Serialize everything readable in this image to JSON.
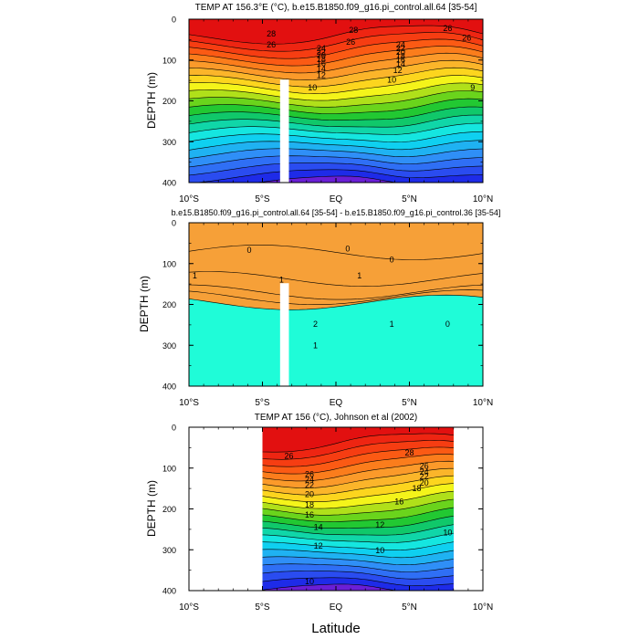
{
  "figure": {
    "xlabel": "Latitude"
  },
  "chart_data": [
    {
      "type": "heatmap",
      "title": "TEMP AT 156.3°E (°C), b.e15.B1850.f09_g16.pi_control.all.64 [35-54]",
      "xlabel": "",
      "ylabel": "DEPTH (m)",
      "xlim": [
        -10,
        10
      ],
      "ylim": [
        400,
        0
      ],
      "y_reversed": true,
      "x_tick_values": [
        -10,
        -5,
        0,
        5,
        10
      ],
      "x_tick_labels": [
        "10°S",
        "5°S",
        "EQ",
        "5°N",
        "10°N"
      ],
      "y_tick_values": [
        0,
        100,
        200,
        300,
        400
      ],
      "y_tick_labels": [
        "0",
        "100",
        "200",
        "300",
        "400"
      ],
      "color_levels": [
        8,
        9,
        10,
        11,
        12,
        13,
        14,
        15,
        16,
        17,
        18,
        19,
        20,
        21,
        22,
        23,
        24,
        25,
        26,
        27,
        28,
        29
      ],
      "color_scale": [
        "#6a1fd6",
        "#1e2be8",
        "#2a4cf0",
        "#2f6ff5",
        "#2f8ff7",
        "#1fb2f2",
        "#0fd0f0",
        "#15e6e0",
        "#10d6a8",
        "#10c86a",
        "#22c832",
        "#6ad41c",
        "#b0e01a",
        "#f4f41a",
        "#fcd51e",
        "#fbb52a",
        "#fb9a2a",
        "#fb7d1c",
        "#fb5a14",
        "#f63d12",
        "#ee2512",
        "#e21010"
      ],
      "contour_labels": [
        {
          "lat": -4.4,
          "depth": 36,
          "text": "28"
        },
        {
          "lat": 1.2,
          "depth": 27,
          "text": "28"
        },
        {
          "lat": 7.6,
          "depth": 22,
          "text": "26"
        },
        {
          "lat": 8.9,
          "depth": 46,
          "text": "26"
        },
        {
          "lat": -4.4,
          "depth": 63,
          "text": "26"
        },
        {
          "lat": 1.0,
          "depth": 56,
          "text": "26"
        },
        {
          "lat": -1.0,
          "depth": 71,
          "text": "24"
        },
        {
          "lat": 4.4,
          "depth": 63,
          "text": "24"
        },
        {
          "lat": -1.0,
          "depth": 80,
          "text": "22"
        },
        {
          "lat": 4.4,
          "depth": 72,
          "text": "22"
        },
        {
          "lat": -1.0,
          "depth": 88,
          "text": "20"
        },
        {
          "lat": 4.4,
          "depth": 81,
          "text": "20"
        },
        {
          "lat": 4.4,
          "depth": 90,
          "text": "18"
        },
        {
          "lat": -1.0,
          "depth": 98,
          "text": "18"
        },
        {
          "lat": 4.4,
          "depth": 99,
          "text": "16"
        },
        {
          "lat": -1.0,
          "depth": 108,
          "text": "16"
        },
        {
          "lat": 4.4,
          "depth": 110,
          "text": "14"
        },
        {
          "lat": -1.0,
          "depth": 122,
          "text": "14"
        },
        {
          "lat": 4.2,
          "depth": 125,
          "text": "12"
        },
        {
          "lat": -1.0,
          "depth": 137,
          "text": "12"
        },
        {
          "lat": 3.8,
          "depth": 149,
          "text": "10"
        },
        {
          "lat": -1.6,
          "depth": 168,
          "text": "10"
        },
        {
          "lat": 9.3,
          "depth": 168,
          "text": "9"
        }
      ],
      "masked_column": {
        "lat_from": -3.8,
        "lat_to": -3.2,
        "depth_from": 148,
        "depth_to": 400
      }
    },
    {
      "type": "heatmap",
      "title": "b.e15.B1850.f09_g16.pi_control.all.64 [35-54] - b.e15.B1850.f09_g16.pi_control.36 [35-54]",
      "xlabel": "",
      "ylabel": "DEPTH (m)",
      "xlim": [
        -10,
        10
      ],
      "ylim": [
        400,
        0
      ],
      "y_reversed": true,
      "x_tick_values": [
        -10,
        -5,
        0,
        5,
        10
      ],
      "x_tick_labels": [
        "10°S",
        "5°S",
        "EQ",
        "5°N",
        "10°N"
      ],
      "y_tick_values": [
        0,
        100,
        200,
        300,
        400
      ],
      "y_tick_labels": [
        "0",
        "100",
        "200",
        "300",
        "400"
      ],
      "color_levels": [
        -1,
        0,
        1,
        1.5,
        2,
        2.5
      ],
      "color_scale": [
        "#1ffcd8",
        "#13eac4",
        "#44e41e",
        "#fafa10",
        "#fdd42a",
        "#f6a038"
      ],
      "contour_labels": [
        {
          "lat": -5.9,
          "depth": 67,
          "text": "0"
        },
        {
          "lat": 0.8,
          "depth": 64,
          "text": "0"
        },
        {
          "lat": 3.8,
          "depth": 90,
          "text": "0"
        },
        {
          "lat": -9.6,
          "depth": 130,
          "text": "1"
        },
        {
          "lat": -3.7,
          "depth": 140,
          "text": "1"
        },
        {
          "lat": 1.6,
          "depth": 130,
          "text": "1"
        },
        {
          "lat": 3.8,
          "depth": 248,
          "text": "1"
        },
        {
          "lat": -1.4,
          "depth": 248,
          "text": "2"
        },
        {
          "lat": -1.4,
          "depth": 300,
          "text": "1"
        },
        {
          "lat": 7.6,
          "depth": 248,
          "text": "0"
        }
      ],
      "masked_column": {
        "lat_from": -3.8,
        "lat_to": -3.2,
        "depth_from": 148,
        "depth_to": 400
      }
    },
    {
      "type": "heatmap",
      "title": "TEMP AT 156 (°C), Johnson et al (2002)",
      "xlabel": "",
      "ylabel": "DEPTH (m)",
      "xlim": [
        -10,
        10
      ],
      "ylim": [
        400,
        0
      ],
      "y_reversed": true,
      "data_lat_range": [
        -5,
        8
      ],
      "x_tick_values": [
        -10,
        -5,
        0,
        5,
        10
      ],
      "x_tick_labels": [
        "10°S",
        "5°S",
        "EQ",
        "5°N",
        "10°N"
      ],
      "y_tick_values": [
        0,
        100,
        200,
        300,
        400
      ],
      "y_tick_labels": [
        "0",
        "100",
        "200",
        "300",
        "400"
      ],
      "color_levels": [
        8,
        9,
        10,
        11,
        12,
        13,
        14,
        15,
        16,
        17,
        18,
        19,
        20,
        21,
        22,
        23,
        24,
        25,
        26,
        27,
        28,
        29
      ],
      "color_scale": [
        "#6a1fd6",
        "#1e2be8",
        "#2a4cf0",
        "#2f6ff5",
        "#2f8ff7",
        "#1fb2f2",
        "#0fd0f0",
        "#15e6e0",
        "#10d6a8",
        "#10c86a",
        "#22c832",
        "#6ad41c",
        "#b0e01a",
        "#f4f41a",
        "#fcd51e",
        "#fbb52a",
        "#fb9a2a",
        "#fb7d1c",
        "#fb5a14",
        "#f63d12",
        "#ee2512",
        "#e21010"
      ],
      "contour_labels": [
        {
          "lat": -3.2,
          "depth": 70,
          "text": "26"
        },
        {
          "lat": 5.0,
          "depth": 63,
          "text": "28"
        },
        {
          "lat": -1.8,
          "depth": 115,
          "text": "26"
        },
        {
          "lat": 6.0,
          "depth": 95,
          "text": "26"
        },
        {
          "lat": -1.8,
          "depth": 128,
          "text": "24"
        },
        {
          "lat": 6.0,
          "depth": 109,
          "text": "24"
        },
        {
          "lat": -1.8,
          "depth": 142,
          "text": "22"
        },
        {
          "lat": 6.0,
          "depth": 121,
          "text": "22"
        },
        {
          "lat": -1.8,
          "depth": 164,
          "text": "20"
        },
        {
          "lat": 6.0,
          "depth": 136,
          "text": "20"
        },
        {
          "lat": -1.8,
          "depth": 190,
          "text": "18"
        },
        {
          "lat": 4.3,
          "depth": 182,
          "text": "16"
        },
        {
          "lat": 5.5,
          "depth": 150,
          "text": "18"
        },
        {
          "lat": -1.8,
          "depth": 215,
          "text": "16"
        },
        {
          "lat": -1.2,
          "depth": 245,
          "text": "14"
        },
        {
          "lat": 3.0,
          "depth": 239,
          "text": "12"
        },
        {
          "lat": -1.2,
          "depth": 290,
          "text": "12"
        },
        {
          "lat": 3.0,
          "depth": 302,
          "text": "10"
        },
        {
          "lat": 7.6,
          "depth": 258,
          "text": "10"
        },
        {
          "lat": -1.8,
          "depth": 378,
          "text": "10"
        }
      ]
    }
  ]
}
